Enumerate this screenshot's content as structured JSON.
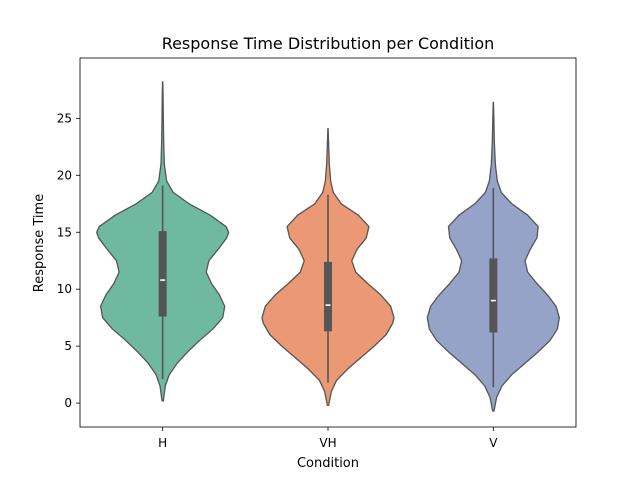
{
  "chart_data": {
    "type": "violin",
    "title": "Response Time Distribution per Condition",
    "xlabel": "Condition",
    "ylabel": "Response Time",
    "ylim": [
      -2.1,
      30.3
    ],
    "yticks": [
      0,
      5,
      10,
      15,
      20,
      25
    ],
    "grid": false,
    "categories": [
      "H",
      "VH",
      "V"
    ],
    "colors": [
      "#6fb9a1",
      "#eb9874",
      "#94a3c7"
    ],
    "violins": [
      {
        "category": "H",
        "min": 0.2,
        "max": 28.2,
        "q1": 7.6,
        "median": 10.8,
        "q3": 15.1,
        "whisker_low": 2.1,
        "whisker_high": 19.1,
        "density": [
          [
            0.2,
            0.01
          ],
          [
            1.5,
            0.04
          ],
          [
            2.5,
            0.1
          ],
          [
            3.5,
            0.22
          ],
          [
            4.5,
            0.38
          ],
          [
            5.5,
            0.56
          ],
          [
            6.5,
            0.76
          ],
          [
            7.5,
            0.91
          ],
          [
            8.5,
            0.94
          ],
          [
            9.5,
            0.86
          ],
          [
            10.5,
            0.74
          ],
          [
            11.5,
            0.66
          ],
          [
            12.5,
            0.7
          ],
          [
            13.5,
            0.84
          ],
          [
            14.5,
            0.97
          ],
          [
            15.0,
            1.0
          ],
          [
            15.5,
            0.96
          ],
          [
            16.5,
            0.72
          ],
          [
            17.5,
            0.4
          ],
          [
            18.5,
            0.16
          ],
          [
            19.5,
            0.06
          ],
          [
            21,
            0.025
          ],
          [
            23,
            0.015
          ],
          [
            25,
            0.01
          ],
          [
            27,
            0.006
          ],
          [
            28.2,
            0.002
          ]
        ]
      },
      {
        "category": "VH",
        "min": -0.2,
        "max": 24.1,
        "q1": 6.3,
        "median": 8.6,
        "q3": 12.4,
        "whisker_low": 1.8,
        "whisker_high": 18.3,
        "density": [
          [
            -0.2,
            0.01
          ],
          [
            1,
            0.05
          ],
          [
            2,
            0.13
          ],
          [
            3,
            0.3
          ],
          [
            4,
            0.5
          ],
          [
            5,
            0.7
          ],
          [
            6,
            0.88
          ],
          [
            7,
            0.98
          ],
          [
            7.5,
            1.0
          ],
          [
            8.5,
            0.95
          ],
          [
            9.5,
            0.8
          ],
          [
            10.5,
            0.6
          ],
          [
            11.5,
            0.42
          ],
          [
            12.5,
            0.36
          ],
          [
            13.5,
            0.44
          ],
          [
            14.5,
            0.58
          ],
          [
            15.5,
            0.62
          ],
          [
            16.5,
            0.46
          ],
          [
            17.5,
            0.2
          ],
          [
            18.5,
            0.08
          ],
          [
            19.5,
            0.04
          ],
          [
            21,
            0.02
          ],
          [
            23,
            0.008
          ],
          [
            24.1,
            0.002
          ]
        ]
      },
      {
        "category": "V",
        "min": -0.7,
        "max": 26.4,
        "q1": 6.2,
        "median": 9.0,
        "q3": 12.7,
        "whisker_low": 1.4,
        "whisker_high": 18.9,
        "density": [
          [
            -0.7,
            0.01
          ],
          [
            0.5,
            0.05
          ],
          [
            1.5,
            0.13
          ],
          [
            2.5,
            0.28
          ],
          [
            3.5,
            0.48
          ],
          [
            4.5,
            0.68
          ],
          [
            5.5,
            0.86
          ],
          [
            6.5,
            0.97
          ],
          [
            7.5,
            1.0
          ],
          [
            8.5,
            0.95
          ],
          [
            9.5,
            0.82
          ],
          [
            10.5,
            0.66
          ],
          [
            11.5,
            0.52
          ],
          [
            12.5,
            0.48
          ],
          [
            13.5,
            0.56
          ],
          [
            14.5,
            0.66
          ],
          [
            15.5,
            0.68
          ],
          [
            16.5,
            0.52
          ],
          [
            17.5,
            0.28
          ],
          [
            18.5,
            0.12
          ],
          [
            19.5,
            0.06
          ],
          [
            21,
            0.03
          ],
          [
            23,
            0.015
          ],
          [
            25,
            0.008
          ],
          [
            26.4,
            0.002
          ]
        ]
      }
    ]
  }
}
